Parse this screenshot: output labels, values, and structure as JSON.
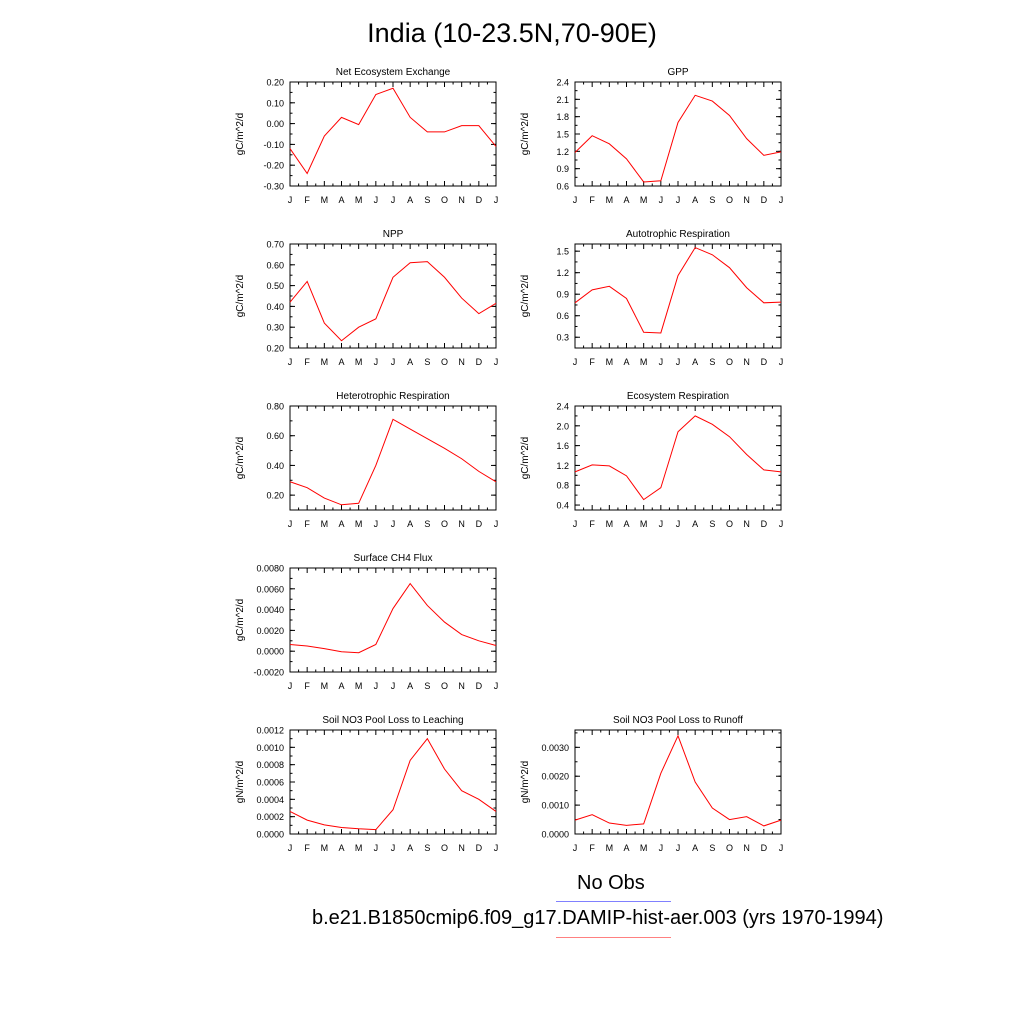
{
  "title": "India (10-23.5N,70-90E)",
  "line_color": "#ff0000",
  "legend": [
    {
      "label": "No Obs",
      "color": "#8080ff"
    },
    {
      "label": "b.e21.B1850cmip6.f09_g17.DAMIP-hist-aer.003 (yrs 1970-1994)",
      "color": "#ff8080"
    }
  ],
  "chart_data": [
    {
      "type": "line",
      "title": "Net Ecosystem Exchange",
      "ylabel": "gC/m^2/d",
      "categories": [
        "J",
        "F",
        "M",
        "A",
        "M",
        "J",
        "J",
        "A",
        "S",
        "O",
        "N",
        "D",
        "J"
      ],
      "ylim": [
        -0.3,
        0.2
      ],
      "yticks": [
        "0.20",
        "0.10",
        "0.00",
        "-0.10",
        "-0.20",
        "-0.30"
      ],
      "ytick_values": [
        0.2,
        0.1,
        0.0,
        -0.1,
        -0.2,
        -0.3
      ],
      "values": [
        -0.12,
        -0.24,
        -0.06,
        0.03,
        -0.005,
        0.14,
        0.17,
        0.03,
        -0.04,
        -0.04,
        -0.01,
        -0.01,
        -0.11
      ]
    },
    {
      "type": "line",
      "title": "GPP",
      "ylabel": "gC/m^2/d",
      "categories": [
        "J",
        "F",
        "M",
        "A",
        "M",
        "J",
        "J",
        "A",
        "S",
        "O",
        "N",
        "D",
        "J"
      ],
      "ylim": [
        0.6,
        2.4
      ],
      "yticks": [
        "2.4",
        "2.1",
        "1.8",
        "1.5",
        "1.2",
        "0.9",
        "0.6"
      ],
      "ytick_values": [
        2.4,
        2.1,
        1.8,
        1.5,
        1.2,
        0.9,
        0.6
      ],
      "values": [
        1.18,
        1.47,
        1.33,
        1.07,
        0.67,
        0.69,
        1.7,
        2.17,
        2.07,
        1.82,
        1.42,
        1.13,
        1.19
      ]
    },
    {
      "type": "line",
      "title": "NPP",
      "ylabel": "gC/m^2/d",
      "categories": [
        "J",
        "F",
        "M",
        "A",
        "M",
        "J",
        "J",
        "A",
        "S",
        "O",
        "N",
        "D",
        "J"
      ],
      "ylim": [
        0.2,
        0.7
      ],
      "yticks": [
        "0.70",
        "0.60",
        "0.50",
        "0.40",
        "0.30",
        "0.20"
      ],
      "ytick_values": [
        0.7,
        0.6,
        0.5,
        0.4,
        0.3,
        0.2
      ],
      "values": [
        0.42,
        0.52,
        0.32,
        0.235,
        0.3,
        0.34,
        0.54,
        0.61,
        0.615,
        0.54,
        0.44,
        0.365,
        0.415
      ]
    },
    {
      "type": "line",
      "title": "Autotrophic Respiration",
      "ylabel": "gC/m^2/d",
      "categories": [
        "J",
        "F",
        "M",
        "A",
        "M",
        "J",
        "J",
        "A",
        "S",
        "O",
        "N",
        "D",
        "J"
      ],
      "ylim": [
        0.15,
        1.6
      ],
      "yticks": [
        "1.5",
        "1.2",
        "0.9",
        "0.6",
        "0.3"
      ],
      "ytick_values": [
        1.5,
        1.2,
        0.9,
        0.6,
        0.3
      ],
      "values": [
        0.78,
        0.96,
        1.01,
        0.84,
        0.37,
        0.36,
        1.16,
        1.55,
        1.45,
        1.27,
        0.99,
        0.78,
        0.79
      ]
    },
    {
      "type": "line",
      "title": "Heterotrophic Respiration",
      "ylabel": "gC/m^2/d",
      "categories": [
        "J",
        "F",
        "M",
        "A",
        "M",
        "J",
        "J",
        "A",
        "S",
        "O",
        "N",
        "D",
        "J"
      ],
      "ylim": [
        0.1,
        0.8
      ],
      "yticks": [
        "0.80",
        "0.60",
        "0.40",
        "0.20"
      ],
      "ytick_values": [
        0.8,
        0.6,
        0.4,
        0.2
      ],
      "values": [
        0.29,
        0.25,
        0.18,
        0.135,
        0.145,
        0.4,
        0.71,
        0.645,
        0.58,
        0.515,
        0.445,
        0.36,
        0.29
      ]
    },
    {
      "type": "line",
      "title": "Ecosystem Respiration",
      "ylabel": "gC/m^2/d",
      "categories": [
        "J",
        "F",
        "M",
        "A",
        "M",
        "J",
        "J",
        "A",
        "S",
        "O",
        "N",
        "D",
        "J"
      ],
      "ylim": [
        0.3,
        2.4
      ],
      "yticks": [
        "2.4",
        "2.0",
        "1.6",
        "1.2",
        "0.8",
        "0.4"
      ],
      "ytick_values": [
        2.4,
        2.0,
        1.6,
        1.2,
        0.8,
        0.4
      ],
      "values": [
        1.07,
        1.21,
        1.19,
        0.99,
        0.51,
        0.75,
        1.88,
        2.2,
        2.03,
        1.78,
        1.42,
        1.11,
        1.07
      ]
    },
    {
      "type": "line",
      "title": "Surface CH4 Flux",
      "ylabel": "gC/m^2/d",
      "categories": [
        "J",
        "F",
        "M",
        "A",
        "M",
        "J",
        "J",
        "A",
        "S",
        "O",
        "N",
        "D",
        "J"
      ],
      "ylim": [
        -0.002,
        0.008
      ],
      "yticks": [
        "0.0080",
        "0.0060",
        "0.0040",
        "0.0020",
        "0.0000",
        "-0.0020"
      ],
      "ytick_values": [
        0.008,
        0.006,
        0.004,
        0.002,
        0.0,
        -0.002
      ],
      "values": [
        0.00065,
        0.0005,
        0.00025,
        -5e-05,
        -0.00015,
        0.00065,
        0.0041,
        0.0065,
        0.0044,
        0.0028,
        0.0016,
        0.001,
        0.00055
      ]
    },
    {
      "type": "line",
      "title": "Soil NO3 Pool Loss to Leaching",
      "ylabel": "gN/m^2/d",
      "categories": [
        "J",
        "F",
        "M",
        "A",
        "M",
        "J",
        "J",
        "A",
        "S",
        "O",
        "N",
        "D",
        "J"
      ],
      "ylim": [
        0.0,
        0.0012
      ],
      "yticks": [
        "0.0012",
        "0.0010",
        "0.0008",
        "0.0006",
        "0.0004",
        "0.0002",
        "0.0000"
      ],
      "ytick_values": [
        0.0012,
        0.001,
        0.0008,
        0.0006,
        0.0004,
        0.0002,
        0.0
      ],
      "values": [
        0.00026,
        0.00016,
        0.000105,
        7.5e-05,
        6e-05,
        5e-05,
        0.00028,
        0.00085,
        0.0011,
        0.00075,
        0.0005,
        0.0004,
        0.00026
      ]
    },
    {
      "type": "line",
      "title": "Soil NO3 Pool Loss to Runoff",
      "ylabel": "gN/m^2/d",
      "categories": [
        "J",
        "F",
        "M",
        "A",
        "M",
        "J",
        "J",
        "A",
        "S",
        "O",
        "N",
        "D",
        "J"
      ],
      "ylim": [
        0.0,
        0.0036
      ],
      "yticks": [
        "0.0030",
        "0.0020",
        "0.0010",
        "0.0000"
      ],
      "ytick_values": [
        0.003,
        0.002,
        0.001,
        0.0
      ],
      "values": [
        0.00048,
        0.00067,
        0.00038,
        0.0003,
        0.00035,
        0.0021,
        0.0034,
        0.0018,
        0.0009,
        0.0005,
        0.0006,
        0.00028,
        0.00048
      ]
    }
  ]
}
